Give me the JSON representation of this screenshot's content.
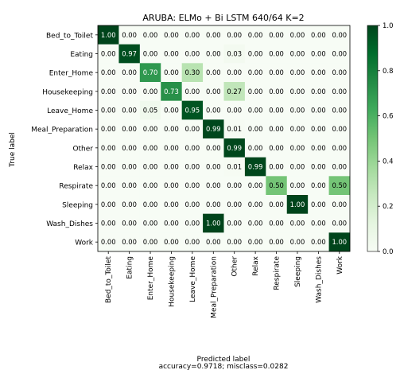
{
  "chart_data": {
    "type": "heatmap",
    "title": "ARUBA: ELMo + Bi LSTM 640/64 K=2",
    "xlabel": "Predicted label",
    "ylabel": "True label",
    "caption": "accuracy=0.9718; misclass=0.0282",
    "rows": [
      "Bed_to_Toilet",
      "Eating",
      "Enter_Home",
      "Housekeeping",
      "Leave_Home",
      "Meal_Preparation",
      "Other",
      "Relax",
      "Respirate",
      "Sleeping",
      "Wash_Dishes",
      "Work"
    ],
    "columns": [
      "Bed_to_Toilet",
      "Eating",
      "Enter_Home",
      "Housekeeping",
      "Leave_Home",
      "Meal_Preparation",
      "Other",
      "Relax",
      "Respirate",
      "Sleeping",
      "Wash_Dishes",
      "Work"
    ],
    "values": [
      [
        1.0,
        0.0,
        0.0,
        0.0,
        0.0,
        0.0,
        0.0,
        0.0,
        0.0,
        0.0,
        0.0,
        0.0
      ],
      [
        0.0,
        0.97,
        0.0,
        0.0,
        0.0,
        0.0,
        0.03,
        0.0,
        0.0,
        0.0,
        0.0,
        0.0
      ],
      [
        0.0,
        0.0,
        0.7,
        0.0,
        0.3,
        0.0,
        0.0,
        0.0,
        0.0,
        0.0,
        0.0,
        0.0
      ],
      [
        0.0,
        0.0,
        0.0,
        0.73,
        0.0,
        0.0,
        0.27,
        0.0,
        0.0,
        0.0,
        0.0,
        0.0
      ],
      [
        0.0,
        0.0,
        0.05,
        0.0,
        0.95,
        0.0,
        0.0,
        0.0,
        0.0,
        0.0,
        0.0,
        0.0
      ],
      [
        0.0,
        0.0,
        0.0,
        0.0,
        0.0,
        0.99,
        0.01,
        0.0,
        0.0,
        0.0,
        0.0,
        0.0
      ],
      [
        0.0,
        0.0,
        0.0,
        0.0,
        0.0,
        0.0,
        0.99,
        0.0,
        0.0,
        0.0,
        0.0,
        0.0
      ],
      [
        0.0,
        0.0,
        0.0,
        0.0,
        0.0,
        0.0,
        0.01,
        0.99,
        0.0,
        0.0,
        0.0,
        0.0
      ],
      [
        0.0,
        0.0,
        0.0,
        0.0,
        0.0,
        0.0,
        0.0,
        0.0,
        0.5,
        0.0,
        0.0,
        0.5
      ],
      [
        0.0,
        0.0,
        0.0,
        0.0,
        0.0,
        0.0,
        0.0,
        0.0,
        0.0,
        1.0,
        0.0,
        0.0
      ],
      [
        0.0,
        0.0,
        0.0,
        0.0,
        0.0,
        1.0,
        0.0,
        0.0,
        0.0,
        0.0,
        0.0,
        0.0
      ],
      [
        0.0,
        0.0,
        0.0,
        0.0,
        0.0,
        0.0,
        0.0,
        0.0,
        0.0,
        0.0,
        0.0,
        1.0
      ]
    ],
    "colormap": "Greens",
    "colorbar": {
      "range": [
        0,
        1
      ],
      "ticks": [
        "0.0",
        "0.2",
        "0.4",
        "0.6",
        "0.8",
        "1.0"
      ]
    },
    "grid": false
  }
}
